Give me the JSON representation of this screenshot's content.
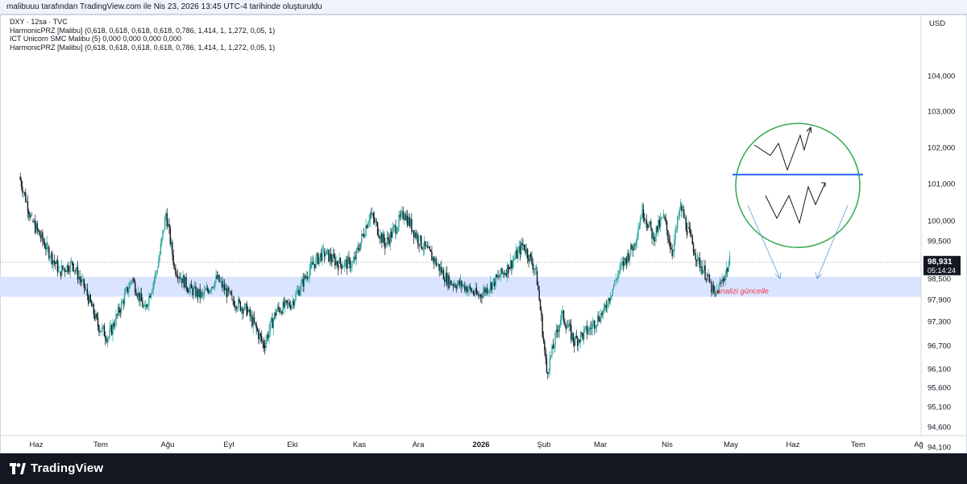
{
  "header": {
    "caption": "malibuuu tarafından TradingView.com ile Nis 23, 2026 13:45 UTC-4 tarihinde oluşturuldu"
  },
  "legend": {
    "symbol": "DXY · 12sa · TVC",
    "indicators": [
      "HarmonicPRZ [Malibu] (0,618, 0,618, 0,618, 0,618, 0,786, 1,414, 1, 1,272, 0,05, 1)",
      "ICT Unicorn SMC Malibu (5)  0,000  0,000  0,000  0,000",
      "HarmonicPRZ [Malibu] (0,618, 0,618, 0,618, 0,618, 0,786, 1,414, 1, 1,272, 0,05, 1)"
    ]
  },
  "footer": {
    "brand": "TradingView",
    "logo_icon": "tradingview-logo-icon"
  },
  "colors": {
    "up": "#26a69a",
    "down": "#131722",
    "zone": "#dbe4ff",
    "annotation": "#f23645",
    "circle": "#2fa84f",
    "neckline": "#2962ff",
    "arrow": "#5b9bd5"
  },
  "chart_data": {
    "type": "candlestick",
    "symbol": "DXY",
    "currency": "USD",
    "y_ticks": [
      "104,000",
      "103,000",
      "102,000",
      "101,000",
      "100,000",
      "99,500",
      "98,500",
      "97,900",
      "97,300",
      "96,700",
      "96,100",
      "95,600",
      "95,100",
      "94,600",
      "94,100"
    ],
    "y_tick_values": [
      104.0,
      103.0,
      102.0,
      101.0,
      100.0,
      99.5,
      98.5,
      97.9,
      97.3,
      96.7,
      96.1,
      95.6,
      95.1,
      94.6,
      94.1
    ],
    "x_ticks": [
      "Haz",
      "Tem",
      "Ağu",
      "Eyl",
      "Eki",
      "Kas",
      "Ara",
      "2026",
      "Şub",
      "Mar",
      "Nis",
      "May",
      "Haz",
      "Tem",
      "Ağ"
    ],
    "last_price": "98,931",
    "countdown": "05:14:24",
    "zone": {
      "top": 98.55,
      "bottom": 97.98,
      "label": "analizi güncelle"
    },
    "close_path": [
      {
        "t": "2025-05-24",
        "p": 101.2
      },
      {
        "t": "2025-05-30",
        "p": 100.0
      },
      {
        "t": "2025-06-06",
        "p": 99.3
      },
      {
        "t": "2025-06-12",
        "p": 98.7
      },
      {
        "t": "2025-06-18",
        "p": 98.9
      },
      {
        "t": "2025-06-24",
        "p": 98.2
      },
      {
        "t": "2025-06-30",
        "p": 97.2
      },
      {
        "t": "2025-07-05",
        "p": 96.9
      },
      {
        "t": "2025-07-10",
        "p": 97.6
      },
      {
        "t": "2025-07-16",
        "p": 98.5
      },
      {
        "t": "2025-07-22",
        "p": 97.6
      },
      {
        "t": "2025-07-28",
        "p": 98.8
      },
      {
        "t": "2025-08-01",
        "p": 100.2
      },
      {
        "t": "2025-08-05",
        "p": 98.8
      },
      {
        "t": "2025-08-12",
        "p": 98.2
      },
      {
        "t": "2025-08-18",
        "p": 98.0
      },
      {
        "t": "2025-08-25",
        "p": 98.5
      },
      {
        "t": "2025-09-01",
        "p": 97.9
      },
      {
        "t": "2025-09-08",
        "p": 97.6
      },
      {
        "t": "2025-09-16",
        "p": 96.7
      },
      {
        "t": "2025-09-22",
        "p": 97.6
      },
      {
        "t": "2025-09-29",
        "p": 97.8
      },
      {
        "t": "2025-10-08",
        "p": 98.8
      },
      {
        "t": "2025-10-14",
        "p": 99.2
      },
      {
        "t": "2025-10-21",
        "p": 98.9
      },
      {
        "t": "2025-10-28",
        "p": 98.9
      },
      {
        "t": "2025-11-05",
        "p": 100.2
      },
      {
        "t": "2025-11-12",
        "p": 99.4
      },
      {
        "t": "2025-11-21",
        "p": 100.2
      },
      {
        "t": "2025-11-28",
        "p": 99.5
      },
      {
        "t": "2025-12-05",
        "p": 99.0
      },
      {
        "t": "2025-12-12",
        "p": 98.4
      },
      {
        "t": "2025-12-19",
        "p": 98.3
      },
      {
        "t": "2025-12-26",
        "p": 98.0
      },
      {
        "t": "2026-01-02",
        "p": 98.4
      },
      {
        "t": "2026-01-09",
        "p": 98.8
      },
      {
        "t": "2026-01-16",
        "p": 99.4
      },
      {
        "t": "2026-01-22",
        "p": 98.7
      },
      {
        "t": "2026-01-27",
        "p": 96.0
      },
      {
        "t": "2026-02-03",
        "p": 97.5
      },
      {
        "t": "2026-02-09",
        "p": 96.8
      },
      {
        "t": "2026-02-16",
        "p": 97.1
      },
      {
        "t": "2026-02-23",
        "p": 97.6
      },
      {
        "t": "2026-03-02",
        "p": 98.7
      },
      {
        "t": "2026-03-09",
        "p": 99.4
      },
      {
        "t": "2026-03-13",
        "p": 100.3
      },
      {
        "t": "2026-03-18",
        "p": 99.6
      },
      {
        "t": "2026-03-23",
        "p": 100.1
      },
      {
        "t": "2026-03-27",
        "p": 99.2
      },
      {
        "t": "2026-03-31",
        "p": 100.4
      },
      {
        "t": "2026-04-03",
        "p": 99.8
      },
      {
        "t": "2026-04-08",
        "p": 99.0
      },
      {
        "t": "2026-04-12",
        "p": 98.6
      },
      {
        "t": "2026-04-16",
        "p": 98.0
      },
      {
        "t": "2026-04-20",
        "p": 98.5
      },
      {
        "t": "2026-04-23",
        "p": 98.93
      }
    ]
  }
}
